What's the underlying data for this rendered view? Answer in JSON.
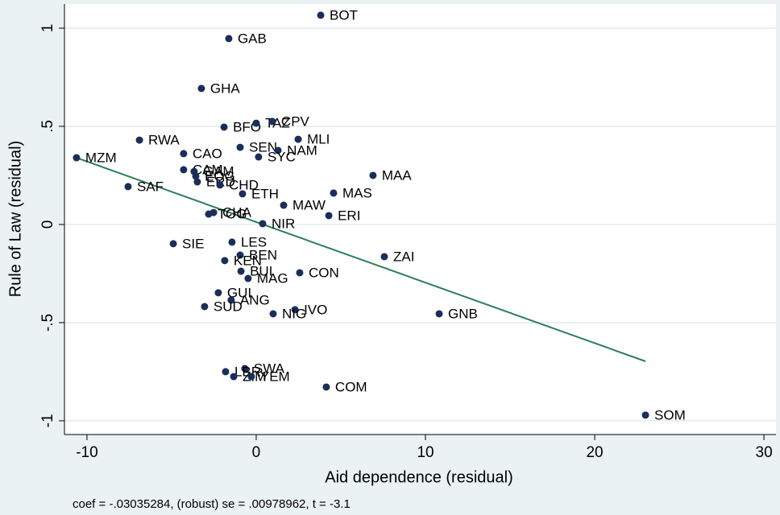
{
  "chart_data": {
    "type": "scatter",
    "x_label": "Aid dependence (residual)",
    "y_label": "Rule of Law (residual)",
    "note": "coef = -.03035284, (robust) se = .00978962, t = -3.1",
    "color": "#1a2e5a",
    "labels": [
      "BOT",
      "GAB",
      "GHA",
      "BFO",
      "TAZ",
      "CPV",
      "MLI",
      "RWA",
      "SEN",
      "NAM",
      "CAO",
      "SYC",
      "MZM",
      "MAA",
      "CAM",
      "GAM",
      "EQG",
      "ERD",
      "CHD",
      "MAS",
      "SAF",
      "ETH",
      "MAW",
      "ERI",
      "TOG",
      "CHA",
      "NIR",
      "SIE",
      "LES",
      "ZAI",
      "BEN",
      "KEN",
      "BUI",
      "CON",
      "MAG",
      "GUI",
      "ANG",
      "SUD",
      "IVO",
      "NIG",
      "GNB",
      "SWA",
      "LBR",
      "ZIM",
      "YEM",
      "COM",
      "SOM"
    ],
    "x": [
      3.81,
      -1.62,
      -3.24,
      -1.9,
      0.0,
      0.95,
      2.48,
      -6.9,
      -0.95,
      1.29,
      -4.29,
      0.14,
      -10.62,
      6.9,
      -4.29,
      -3.67,
      -3.57,
      -3.48,
      -2.14,
      4.57,
      -7.57,
      -0.81,
      1.62,
      4.29,
      -2.81,
      -2.52,
      0.38,
      -4.9,
      -1.43,
      7.57,
      -0.95,
      -1.86,
      -0.9,
      2.57,
      -0.48,
      -2.24,
      -1.48,
      -3.05,
      2.29,
      1.0,
      10.81,
      -0.67,
      -1.81,
      -1.33,
      -0.29,
      4.14,
      23.0
    ],
    "values": [
      1.066,
      0.947,
      0.693,
      0.496,
      0.516,
      0.525,
      0.434,
      0.43,
      0.393,
      0.377,
      0.361,
      0.344,
      0.34,
      0.25,
      0.279,
      0.27,
      0.246,
      0.217,
      0.201,
      0.16,
      0.193,
      0.156,
      0.098,
      0.045,
      0.053,
      0.061,
      0.004,
      -0.098,
      -0.09,
      -0.164,
      -0.156,
      -0.184,
      -0.238,
      -0.246,
      -0.275,
      -0.348,
      -0.385,
      -0.418,
      -0.434,
      -0.455,
      -0.455,
      -0.734,
      -0.75,
      -0.775,
      -0.775,
      -0.828,
      -0.971
    ],
    "fit_line": {
      "x": [
        -10.62,
        23.0
      ],
      "values": [
        0.34,
        -0.697
      ],
      "color": "#2e7d5b"
    },
    "xlim": [
      -11.33,
      30.71
    ],
    "ylim": [
      -1.07,
      1.123
    ],
    "xticks": [
      -10,
      0,
      10,
      20,
      30
    ],
    "yticks": [
      -1,
      {
        "value": -0.5,
        "label": "-.5"
      },
      0,
      {
        "value": 0.5,
        "label": ".5"
      },
      1
    ],
    "grid": true
  }
}
